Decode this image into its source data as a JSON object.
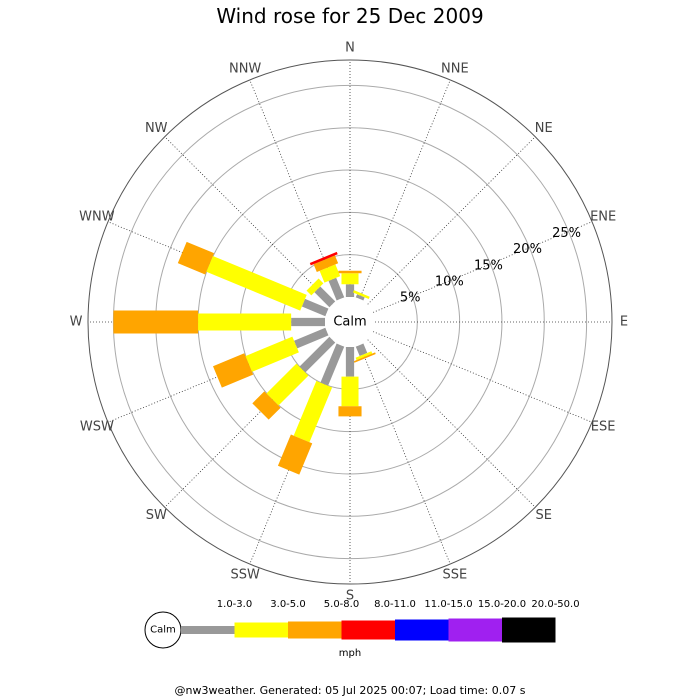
{
  "chart_data": {
    "type": "wind-rose",
    "title": "Wind rose for 25 Dec 2009",
    "directions": [
      "N",
      "NNE",
      "NE",
      "ENE",
      "E",
      "ESE",
      "SE",
      "SSE",
      "S",
      "SSW",
      "SW",
      "WSW",
      "W",
      "WNW",
      "NW",
      "NNW"
    ],
    "ring_labels": [
      "5%",
      "10%",
      "15%",
      "20%",
      "25%"
    ],
    "ring_values": [
      5,
      10,
      15,
      20,
      25
    ],
    "calm_label": "Calm",
    "unit_label": "mph",
    "speed_bins": [
      {
        "label": "1.0-3.0",
        "color": "#999999"
      },
      {
        "label": "3.0-5.0",
        "color": "#ffff00"
      },
      {
        "label": "5.0-8.0",
        "color": "#ffa500"
      },
      {
        "label": "8.0-11.0",
        "color": "#ff0000"
      },
      {
        "label": "11.0-15.0",
        "color": "#0000ff"
      },
      {
        "label": "15.0-20.0",
        "color": "#a020f0"
      },
      {
        "label": "20.0-50.0",
        "color": "#000000"
      }
    ],
    "rmax": 28,
    "frequencies": {
      "N": [
        1.5,
        1.3,
        0.3,
        0,
        0,
        0,
        0
      ],
      "NNE": [
        0.4,
        0.3,
        0,
        0,
        0,
        0,
        0
      ],
      "NE": [
        0,
        0,
        0,
        0,
        0,
        0,
        0
      ],
      "ENE": [
        0,
        0,
        0,
        0,
        0,
        0,
        0
      ],
      "E": [
        0,
        0,
        0,
        0,
        0,
        0,
        0
      ],
      "ESE": [
        0,
        0,
        0,
        0,
        0,
        0,
        0
      ],
      "SE": [
        0,
        0,
        0,
        0,
        0,
        0,
        0
      ],
      "SSE": [
        1.2,
        0.3,
        0.2,
        0,
        0,
        0,
        0
      ],
      "S": [
        3.5,
        3.5,
        1.2,
        0,
        0,
        0,
        0
      ],
      "SSW": [
        5.0,
        7.0,
        4.0,
        0,
        0,
        0,
        0
      ],
      "SW": [
        5.0,
        5.0,
        2.0,
        0,
        0,
        0,
        0
      ],
      "WSW": [
        4.0,
        6.0,
        4.0,
        0,
        0,
        0,
        0
      ],
      "W": [
        4.0,
        11.0,
        10.0,
        0,
        0,
        0,
        0
      ],
      "WNW": [
        3.0,
        12.0,
        3.5,
        0,
        0,
        0,
        0
      ],
      "NW": [
        2.5,
        0.8,
        0,
        0,
        0,
        0,
        0
      ],
      "NNW": [
        2.5,
        1.5,
        1.0,
        0.3,
        0,
        0,
        0
      ]
    }
  },
  "footer": "@nw3weather. Generated: 05 Jul 2025 00:07; Load time: 0.07 s"
}
